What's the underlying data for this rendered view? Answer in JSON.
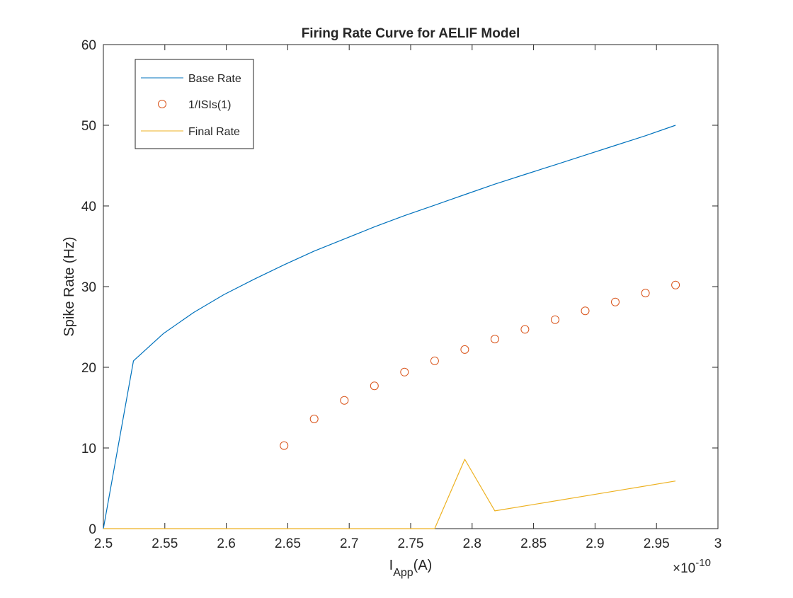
{
  "chart_data": {
    "type": "line",
    "title": "Firing Rate Curve for AELIF Model",
    "xlabel_main": "I",
    "xlabel_sub": "App",
    "xlabel_unit": "(A)",
    "ylabel": "Spike Rate (Hz)",
    "exponent_base": "×10",
    "exponent_power": "-10",
    "xlim": [
      2.5,
      3.0
    ],
    "ylim": [
      0,
      60
    ],
    "x_ticks": [
      2.5,
      2.55,
      2.6,
      2.65,
      2.7,
      2.75,
      2.8,
      2.85,
      2.9,
      2.95,
      3.0
    ],
    "x_tick_labels": [
      "2.5",
      "2.55",
      "2.6",
      "2.65",
      "2.7",
      "2.75",
      "2.8",
      "2.85",
      "2.9",
      "2.95",
      "3"
    ],
    "y_ticks": [
      0,
      10,
      20,
      30,
      40,
      50,
      60
    ],
    "y_tick_labels": [
      "0",
      "10",
      "20",
      "30",
      "40",
      "50",
      "60"
    ],
    "grid": false,
    "legend_position": "top-left",
    "series": [
      {
        "name": "Base Rate",
        "kind": "line",
        "color": "#0072BD",
        "x": [
          2.5,
          2.5245,
          2.549,
          2.5735,
          2.598,
          2.6225,
          2.647,
          2.6715,
          2.696,
          2.7205,
          2.745,
          2.7695,
          2.794,
          2.8185,
          2.843,
          2.8675,
          2.892,
          2.9165,
          2.941,
          2.9655
        ],
        "y": [
          0,
          20.8,
          24.2,
          26.8,
          29.0,
          30.9,
          32.7,
          34.4,
          35.9,
          37.4,
          38.8,
          40.1,
          41.4,
          42.7,
          43.9,
          45.1,
          46.3,
          47.5,
          48.7,
          50.0
        ]
      },
      {
        "name": "1/ISIs(1)",
        "kind": "marker",
        "color": "#D95319",
        "x": [
          2.647,
          2.6715,
          2.696,
          2.7205,
          2.745,
          2.7695,
          2.794,
          2.8185,
          2.843,
          2.8675,
          2.892,
          2.9165,
          2.941,
          2.9655
        ],
        "y": [
          10.3,
          13.6,
          15.9,
          17.7,
          19.4,
          20.8,
          22.2,
          23.5,
          24.7,
          25.9,
          27.0,
          28.1,
          29.2,
          30.2
        ]
      },
      {
        "name": "Final Rate",
        "kind": "line",
        "color": "#EDB120",
        "x": [
          2.5,
          2.7695,
          2.794,
          2.8185,
          2.9655
        ],
        "y": [
          0,
          0,
          8.6,
          2.2,
          5.9
        ]
      }
    ]
  }
}
